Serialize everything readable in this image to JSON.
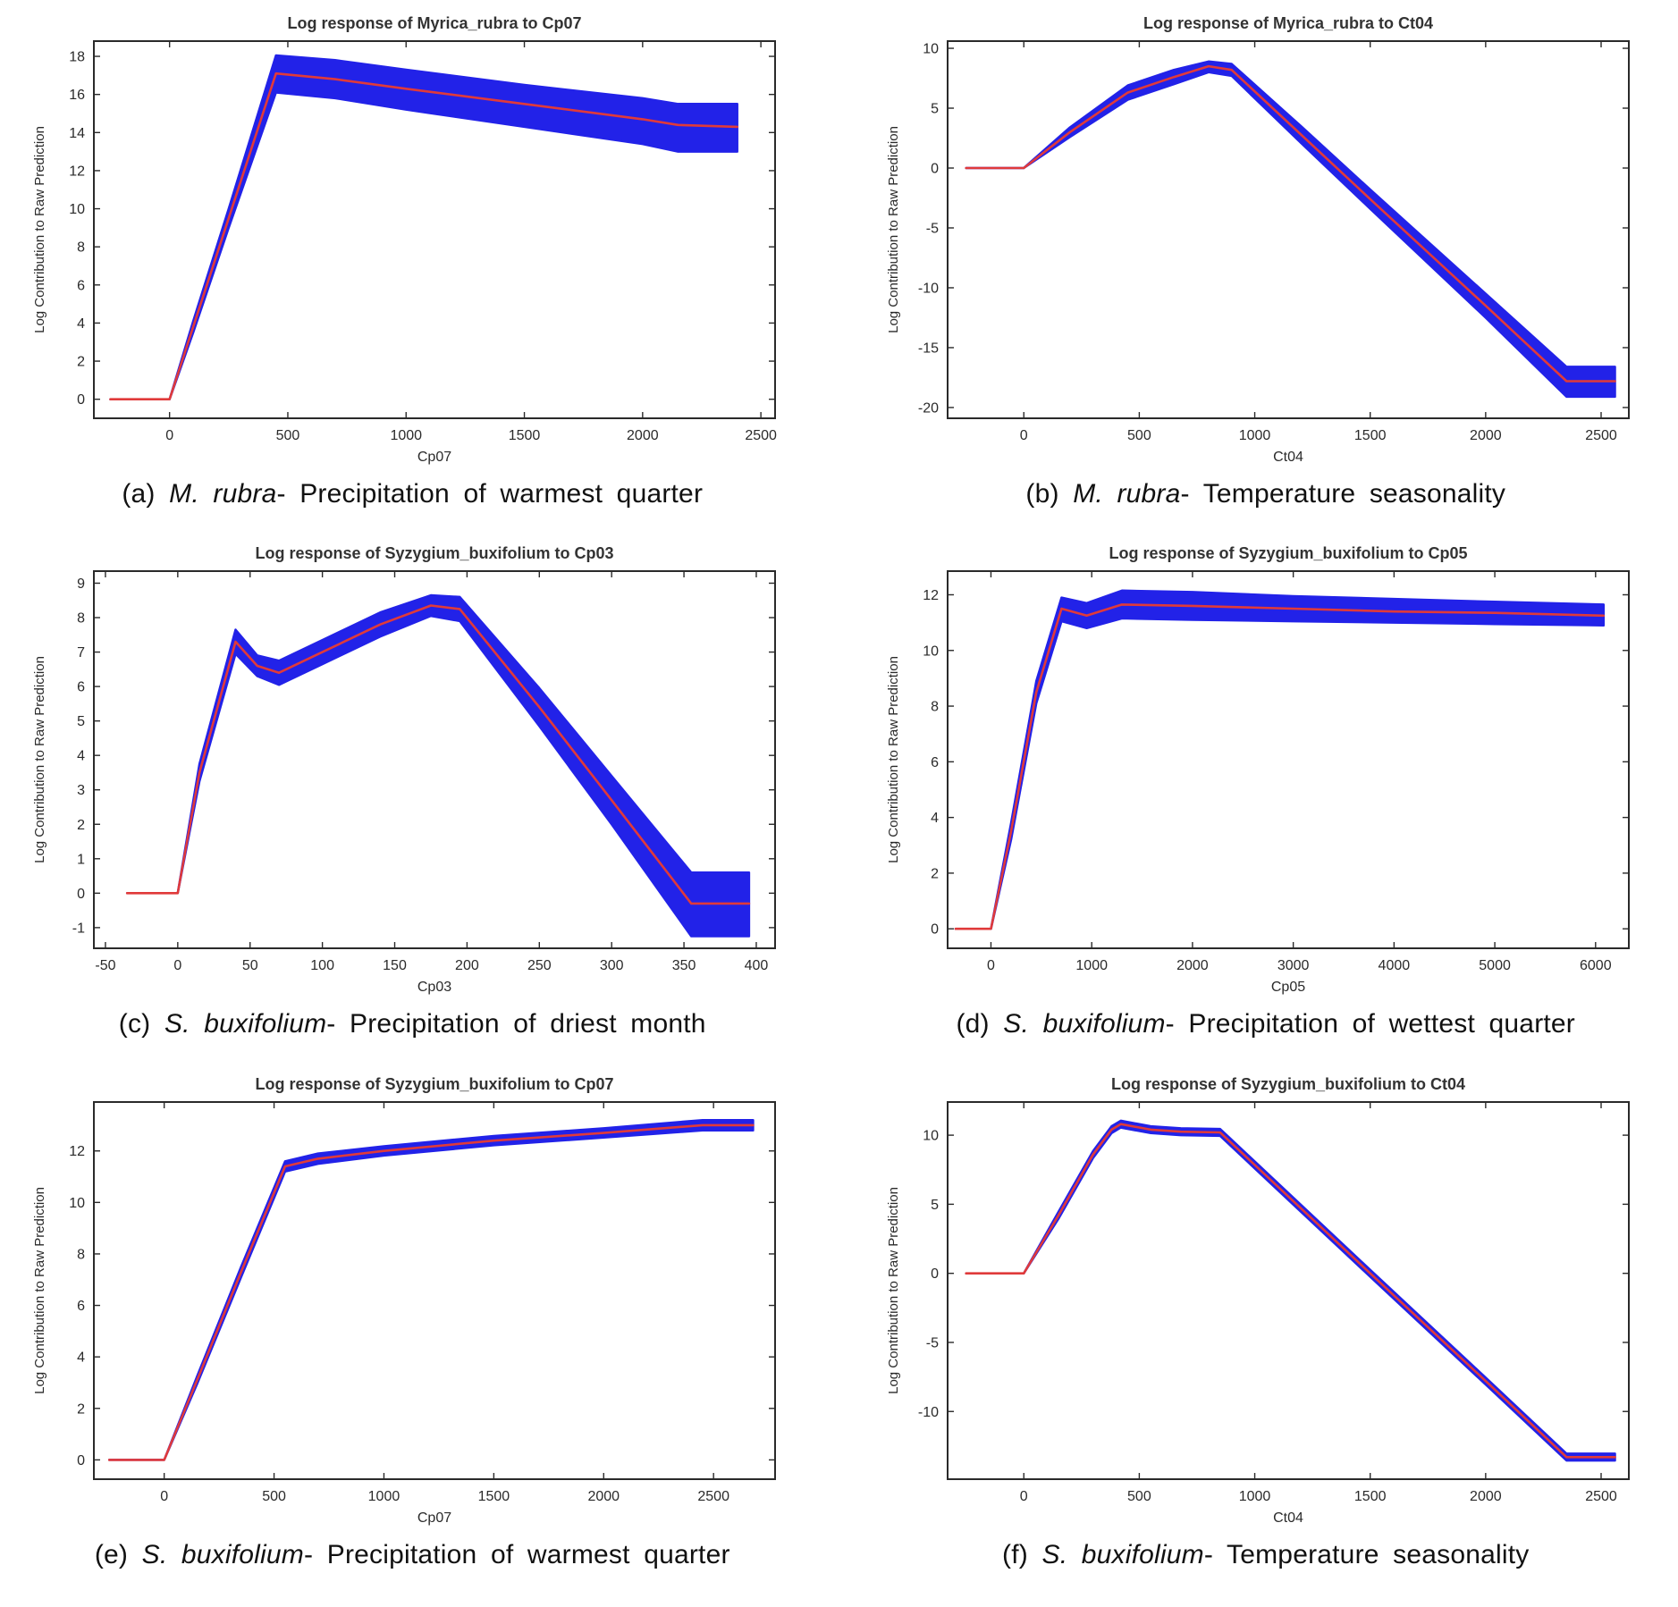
{
  "figure": {
    "background": "#ffffff",
    "band_color": "#2222e8",
    "line_color": "#e03a3a",
    "frame_color": "#2a2a2a",
    "title_color": "#333333",
    "tick_color": "#2a2a2a"
  },
  "chart_data": [
    {
      "id": "a",
      "type": "area",
      "title": "Log response of Myrica_rubra to Cp07",
      "xlabel": "Cp07",
      "ylabel": "Log Contribution to Raw Prediction",
      "legend": "none",
      "grid": false,
      "xlim": [
        -320,
        2560
      ],
      "ylim": [
        -1.0,
        18.8
      ],
      "xticks": [
        0,
        500,
        1000,
        1500,
        2000,
        2500
      ],
      "yticks": [
        0,
        2,
        4,
        6,
        8,
        10,
        12,
        14,
        16,
        18
      ],
      "x": [
        -250,
        0,
        100,
        250,
        450,
        700,
        1000,
        1500,
        2000,
        2150,
        2400
      ],
      "mean": [
        0,
        0,
        3.8,
        9.5,
        17.1,
        16.8,
        16.3,
        15.5,
        14.7,
        14.4,
        14.3
      ],
      "lower": [
        0,
        0,
        3.5,
        9.0,
        16.1,
        15.8,
        15.2,
        14.3,
        13.4,
        13.0,
        13.0
      ],
      "upper": [
        0,
        0,
        4.1,
        10.0,
        18.05,
        17.8,
        17.3,
        16.5,
        15.8,
        15.5,
        15.5
      ],
      "caption": {
        "index": "(a)",
        "species": "M. rubra",
        "suffix": "-",
        "text": "Precipitation of warmest quarter"
      }
    },
    {
      "id": "b",
      "type": "area",
      "title": "Log response of Myrica_rubra to Ct04",
      "xlabel": "Ct04",
      "ylabel": "Log Contribution to Raw Prediction",
      "legend": "none",
      "grid": false,
      "xlim": [
        -330,
        2620
      ],
      "ylim": [
        -20.9,
        10.6
      ],
      "xticks": [
        0,
        500,
        1000,
        1500,
        2000,
        2500
      ],
      "yticks": [
        -20,
        -15,
        -10,
        -5,
        0,
        5,
        10
      ],
      "x": [
        -250,
        0,
        200,
        450,
        650,
        800,
        900,
        1200,
        1500,
        2000,
        2350,
        2560
      ],
      "mean": [
        0,
        0,
        3.0,
        6.3,
        7.6,
        8.5,
        8.2,
        2.8,
        -2.6,
        -11.5,
        -17.8,
        -17.8
      ],
      "lower": [
        0,
        0,
        2.6,
        5.7,
        7.0,
        8.0,
        7.7,
        2.1,
        -3.4,
        -12.5,
        -19.1,
        -19.1
      ],
      "upper": [
        0,
        0,
        3.4,
        6.9,
        8.2,
        8.9,
        8.7,
        3.5,
        -1.8,
        -10.5,
        -16.6,
        -16.6
      ],
      "caption": {
        "index": "(b)",
        "species": "M. rubra",
        "suffix": "-",
        "text": "Temperature seasonality"
      }
    },
    {
      "id": "c",
      "type": "area",
      "title": "Log response of Syzygium_buxifolium to Cp03",
      "xlabel": "Cp03",
      "ylabel": "Log Contribution to Raw Prediction",
      "legend": "none",
      "grid": false,
      "xlim": [
        -58,
        413
      ],
      "ylim": [
        -1.6,
        9.35
      ],
      "xticks": [
        -50,
        0,
        50,
        100,
        150,
        200,
        250,
        300,
        350,
        400
      ],
      "yticks": [
        -1,
        0,
        1,
        2,
        3,
        4,
        5,
        6,
        7,
        8,
        9
      ],
      "x": [
        -35,
        0,
        15,
        40,
        55,
        70,
        100,
        140,
        175,
        195,
        250,
        300,
        355,
        395
      ],
      "mean": [
        0,
        0,
        3.5,
        7.3,
        6.6,
        6.4,
        7.0,
        7.8,
        8.35,
        8.25,
        5.4,
        2.7,
        -0.3,
        -0.3
      ],
      "lower": [
        0,
        0,
        3.25,
        6.95,
        6.3,
        6.05,
        6.65,
        7.45,
        8.05,
        7.9,
        4.85,
        2.0,
        -1.25,
        -1.25
      ],
      "upper": [
        0,
        0,
        3.75,
        7.65,
        6.9,
        6.75,
        7.35,
        8.15,
        8.65,
        8.6,
        5.95,
        3.4,
        0.6,
        0.6
      ],
      "caption": {
        "index": "(c)",
        "species": "S. buxifolium",
        "suffix": "-",
        "text": "Precipitation of driest month"
      }
    },
    {
      "id": "d",
      "type": "area",
      "title": "Log response of Syzygium_buxifolium to Cp05",
      "xlabel": "Cp05",
      "ylabel": "Log Contribution to Raw Prediction",
      "legend": "none",
      "grid": false,
      "xlim": [
        -430,
        6330
      ],
      "ylim": [
        -0.7,
        12.85
      ],
      "xticks": [
        0,
        1000,
        2000,
        3000,
        4000,
        5000,
        6000
      ],
      "yticks": [
        0,
        2,
        4,
        6,
        8,
        10,
        12
      ],
      "x": [
        -350,
        0,
        200,
        450,
        700,
        950,
        1300,
        2000,
        3000,
        4000,
        5000,
        6080
      ],
      "mean": [
        0,
        0,
        3.5,
        8.5,
        11.5,
        11.25,
        11.65,
        11.6,
        11.5,
        11.4,
        11.35,
        11.25
      ],
      "lower": [
        0,
        0,
        3.2,
        8.1,
        11.05,
        10.8,
        11.15,
        11.1,
        11.05,
        11.0,
        10.95,
        10.9
      ],
      "upper": [
        0,
        0,
        3.8,
        8.9,
        11.9,
        11.7,
        12.15,
        12.1,
        11.95,
        11.85,
        11.75,
        11.65
      ],
      "caption": {
        "index": "(d)",
        "species": "S. buxifolium",
        "suffix": "-",
        "text": "Precipitation of wettest quarter"
      }
    },
    {
      "id": "e",
      "type": "area",
      "title": "Log response of Syzygium_buxifolium to Cp07",
      "xlabel": "Cp07",
      "ylabel": "Log Contribution to Raw Prediction",
      "legend": "none",
      "grid": false,
      "xlim": [
        -320,
        2780
      ],
      "ylim": [
        -0.75,
        13.9
      ],
      "xticks": [
        0,
        500,
        1000,
        1500,
        2000,
        2500
      ],
      "yticks": [
        0,
        2,
        4,
        6,
        8,
        10,
        12
      ],
      "x": [
        -250,
        0,
        150,
        350,
        550,
        700,
        1000,
        1500,
        2000,
        2450,
        2680
      ],
      "mean": [
        0,
        0,
        3.1,
        7.3,
        11.4,
        11.7,
        12.0,
        12.4,
        12.7,
        13.0,
        13.0
      ],
      "lower": [
        0,
        0,
        2.95,
        7.1,
        11.2,
        11.5,
        11.82,
        12.22,
        12.52,
        12.8,
        12.8
      ],
      "upper": [
        0,
        0,
        3.25,
        7.5,
        11.6,
        11.9,
        12.18,
        12.58,
        12.88,
        13.2,
        13.2
      ],
      "caption": {
        "index": "(e)",
        "species": "S. buxifolium",
        "suffix": "-",
        "text": "Precipitation of warmest quarter"
      }
    },
    {
      "id": "f",
      "type": "area",
      "title": "Log response of Syzygium_buxifolium to Ct04",
      "xlabel": "Ct04",
      "ylabel": "Log Contribution to Raw Prediction",
      "legend": "none",
      "grid": false,
      "xlim": [
        -330,
        2620
      ],
      "ylim": [
        -14.9,
        12.4
      ],
      "xticks": [
        0,
        500,
        1000,
        1500,
        2000,
        2500
      ],
      "yticks": [
        -10,
        -5,
        0,
        5,
        10
      ],
      "x": [
        -250,
        0,
        150,
        300,
        380,
        420,
        550,
        680,
        850,
        1500,
        2000,
        2350,
        2560
      ],
      "mean": [
        0,
        0,
        4.2,
        8.6,
        10.4,
        10.8,
        10.4,
        10.25,
        10.2,
        0.0,
        -7.8,
        -13.3,
        -13.3
      ],
      "lower": [
        0,
        0,
        3.95,
        8.35,
        10.15,
        10.55,
        10.15,
        10.0,
        9.95,
        -0.25,
        -8.05,
        -13.55,
        -13.55
      ],
      "upper": [
        0,
        0,
        4.45,
        8.85,
        10.65,
        11.05,
        10.65,
        10.5,
        10.45,
        0.25,
        -7.55,
        -13.05,
        -13.05
      ],
      "caption": {
        "index": "(f)",
        "species": "S. buxifolium",
        "suffix": "-",
        "text": "Temperature seasonality"
      }
    }
  ]
}
